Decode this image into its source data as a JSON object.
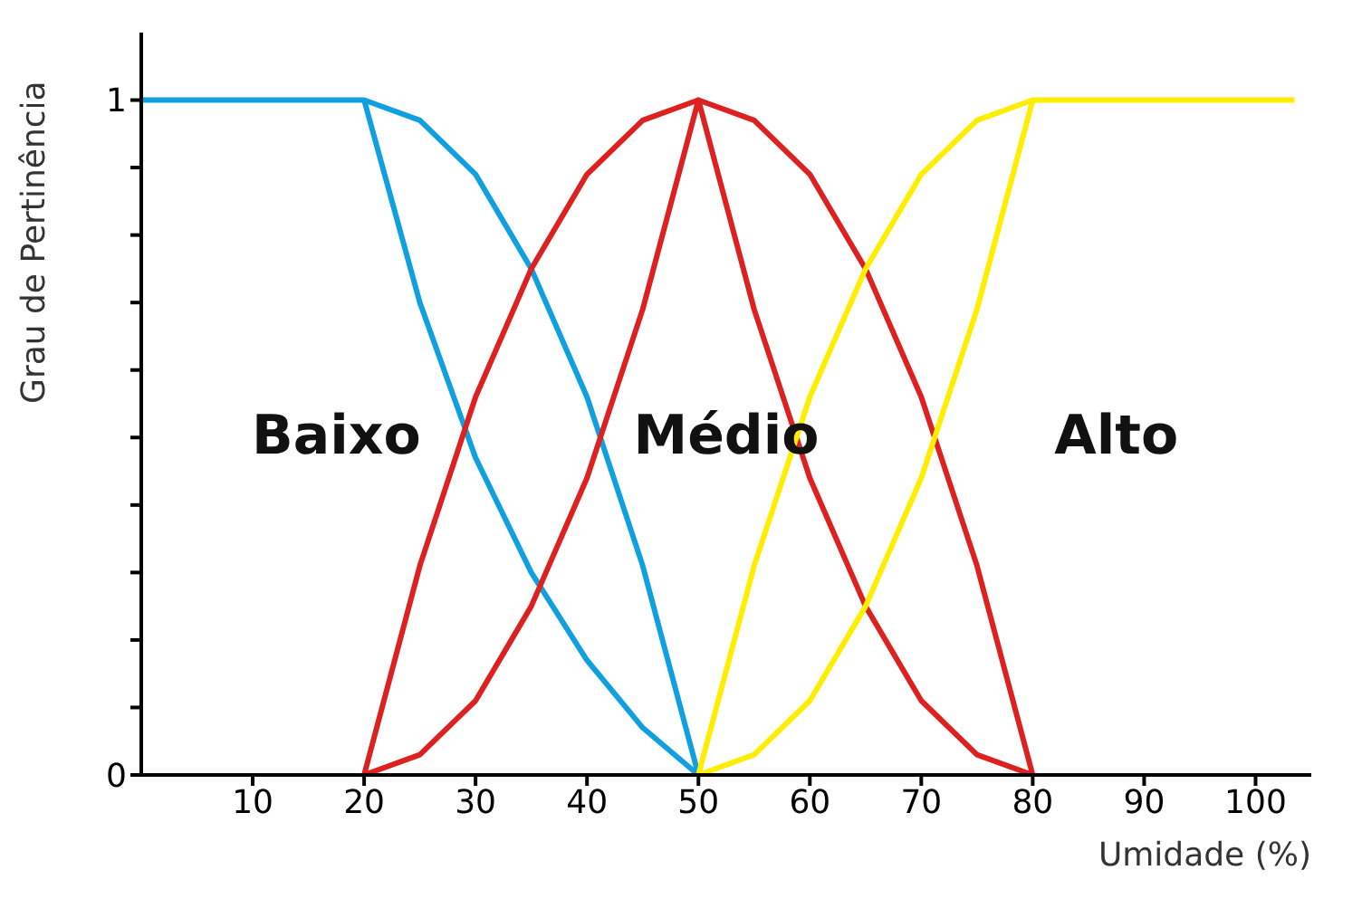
{
  "chart_data": {
    "type": "line",
    "xlabel": "Umidade (%)",
    "ylabel": "Grau de Pertinência",
    "xlim": [
      0,
      105
    ],
    "xticks": [
      10,
      20,
      30,
      40,
      50,
      60,
      70,
      80,
      90,
      100
    ],
    "ylim": [
      0,
      1.1
    ],
    "yticks": [
      0,
      {
        "value": 0.1,
        "label": null
      },
      {
        "value": 0.2,
        "label": null
      },
      {
        "value": 0.3,
        "label": null
      },
      {
        "value": 0.4,
        "label": null
      },
      {
        "value": 0.5,
        "label": null
      },
      {
        "value": 0.6,
        "label": null
      },
      {
        "value": 0.7,
        "label": null
      },
      {
        "value": 0.8,
        "label": null
      },
      {
        "value": 0.9,
        "label": null
      },
      1
    ],
    "grid": false,
    "marker": "none",
    "line_style": "solid",
    "series": [
      {
        "color": "#10a0e0",
        "x": [
          0,
          20,
          25,
          30,
          35,
          40,
          45,
          50
        ],
        "values": [
          1,
          1,
          0.7,
          0.47,
          0.3,
          0.17,
          0.07,
          0
        ]
      },
      {
        "color": "#10a0e0",
        "x": [
          20,
          25,
          30,
          35,
          40,
          45,
          50
        ],
        "values": [
          1,
          0.97,
          0.89,
          0.75,
          0.56,
          0.31,
          0
        ]
      },
      {
        "color": "#dd2020",
        "x": [
          20,
          25,
          30,
          35,
          40,
          45,
          50,
          55,
          60,
          65,
          70,
          75,
          80
        ],
        "values": [
          0,
          0.31,
          0.56,
          0.75,
          0.89,
          0.97,
          1,
          0.97,
          0.89,
          0.75,
          0.56,
          0.31,
          0
        ]
      },
      {
        "color": "#dd2020",
        "x": [
          20,
          25,
          30,
          35,
          40,
          45,
          50,
          55,
          60,
          65,
          70,
          75,
          80
        ],
        "values": [
          0,
          0.03,
          0.11,
          0.25,
          0.44,
          0.69,
          1,
          0.69,
          0.44,
          0.25,
          0.11,
          0.03,
          0
        ]
      },
      {
        "color": "#ffee00",
        "x": [
          50,
          55,
          60,
          65,
          70,
          75,
          80,
          103.5
        ],
        "values": [
          0,
          0.31,
          0.56,
          0.75,
          0.89,
          0.97,
          1,
          1
        ]
      },
      {
        "color": "#ffee00",
        "x": [
          50,
          55,
          60,
          65,
          70,
          75,
          80
        ],
        "values": [
          0,
          0.03,
          0.11,
          0.25,
          0.44,
          0.69,
          1
        ]
      }
    ],
    "annotations": [
      "Baixo",
      "Médio",
      "Alto"
    ]
  }
}
